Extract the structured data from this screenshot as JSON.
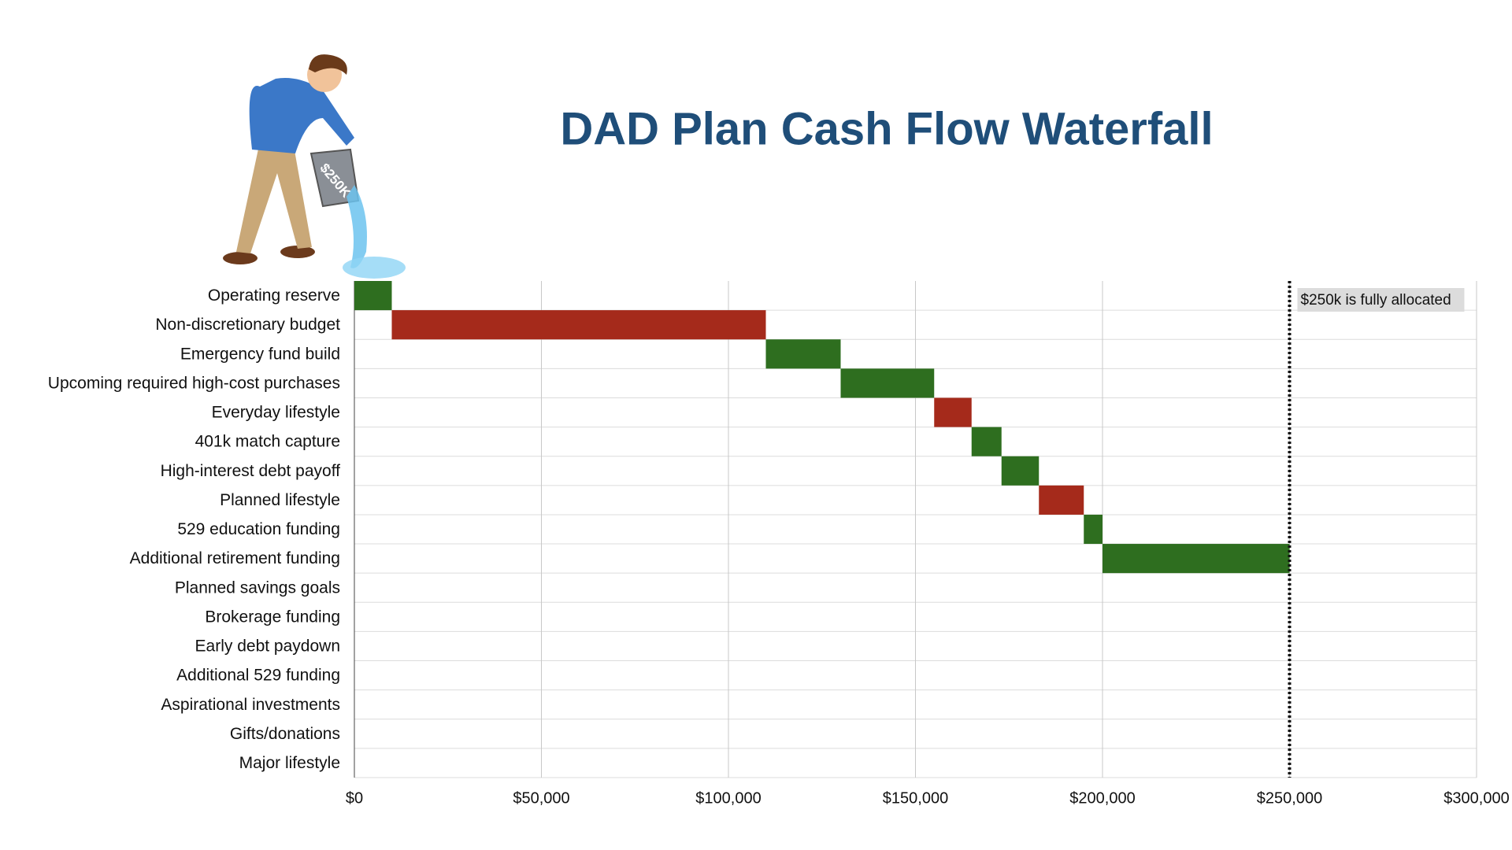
{
  "chart_data": {
    "type": "waterfall",
    "title": "DAD Plan Cash Flow Waterfall",
    "categories": [
      "Operating reserve",
      "Non-discretionary budget",
      "Emergency fund build",
      "Upcoming required high-cost purchases",
      "Everyday lifestyle",
      "401k match capture",
      "High-interest debt payoff",
      "Planned lifestyle",
      "529 education funding",
      "Additional retirement funding",
      "Planned savings goals",
      "Brokerage funding",
      "Early debt paydown",
      "Additional 529 funding",
      "Aspirational investments",
      "Gifts/donations",
      "Major lifestyle"
    ],
    "values": [
      10000,
      100000,
      20000,
      25000,
      10000,
      8000,
      10000,
      12000,
      5000,
      50000,
      0,
      0,
      0,
      0,
      0,
      0,
      0
    ],
    "colors": [
      "#2e6e1f",
      "#a52a1b",
      "#2e6e1f",
      "#2e6e1f",
      "#a52a1b",
      "#2e6e1f",
      "#2e6e1f",
      "#a52a1b",
      "#2e6e1f",
      "#2e6e1f",
      "#2e6e1f",
      "#2e6e1f",
      "#2e6e1f",
      "#2e6e1f",
      "#2e6e1f",
      "#2e6e1f",
      "#2e6e1f"
    ],
    "xlim": [
      0,
      300000
    ],
    "xticks": [
      {
        "value": 0,
        "label": "$0"
      },
      {
        "value": 50000,
        "label": "$50,000"
      },
      {
        "value": 100000,
        "label": "$100,000"
      },
      {
        "value": 150000,
        "label": "$150,000"
      },
      {
        "value": 200000,
        "label": "$200,000"
      },
      {
        "value": 250000,
        "label": "$250,000"
      },
      {
        "value": 300000,
        "label": "$300,000"
      }
    ],
    "grid": true,
    "reference_line": {
      "value": 250000,
      "label": "$250k is fully allocated"
    }
  },
  "illustration": {
    "bucket_label": "$250K"
  }
}
